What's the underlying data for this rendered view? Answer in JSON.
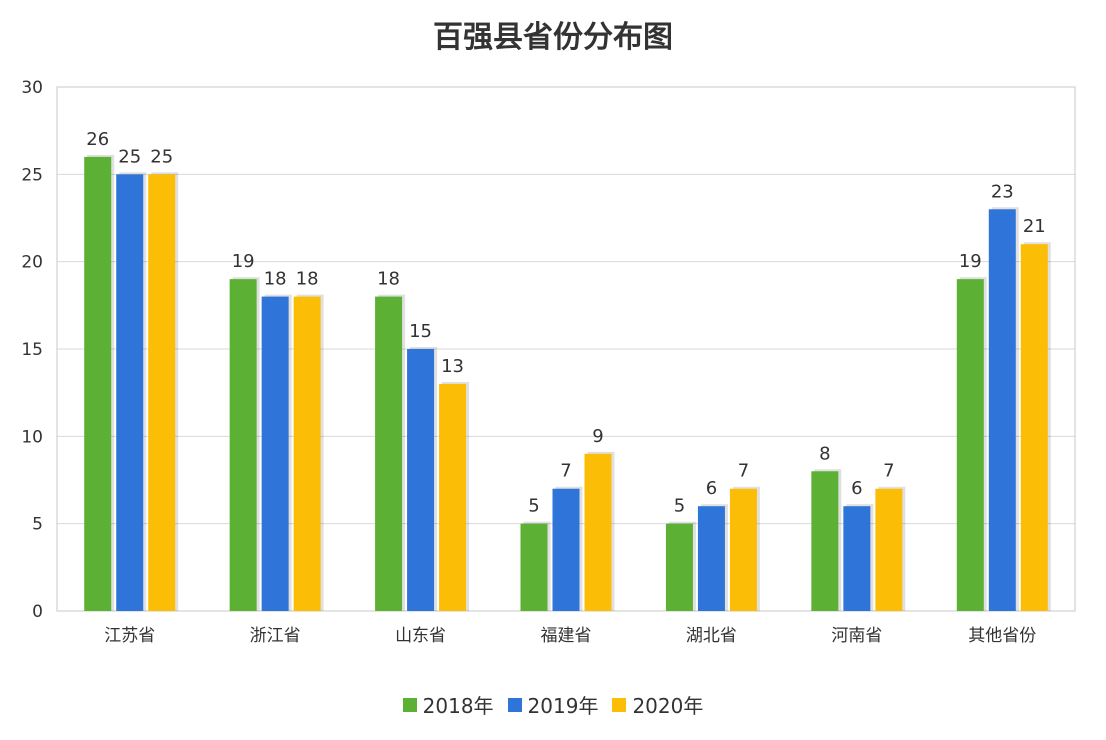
{
  "chart_data": {
    "type": "bar",
    "title": "百强县省份分布图",
    "categories": [
      "江苏省",
      "浙江省",
      "山东省",
      "福建省",
      "湖北省",
      "河南省",
      "其他省份"
    ],
    "series": [
      {
        "name": "2018年",
        "color": "#5cb135",
        "values": [
          26,
          19,
          18,
          5,
          5,
          8,
          19
        ]
      },
      {
        "name": "2019年",
        "color": "#2f74d8",
        "values": [
          25,
          18,
          15,
          7,
          6,
          6,
          23
        ]
      },
      {
        "name": "2020年",
        "color": "#fcbd07",
        "values": [
          25,
          18,
          13,
          9,
          7,
          7,
          21
        ]
      }
    ],
    "ylim": [
      0,
      30
    ],
    "yticks": [
      0,
      5,
      10,
      15,
      20,
      25,
      30
    ],
    "grid": true,
    "legend": "bottom",
    "xlabel": "",
    "ylabel": ""
  }
}
